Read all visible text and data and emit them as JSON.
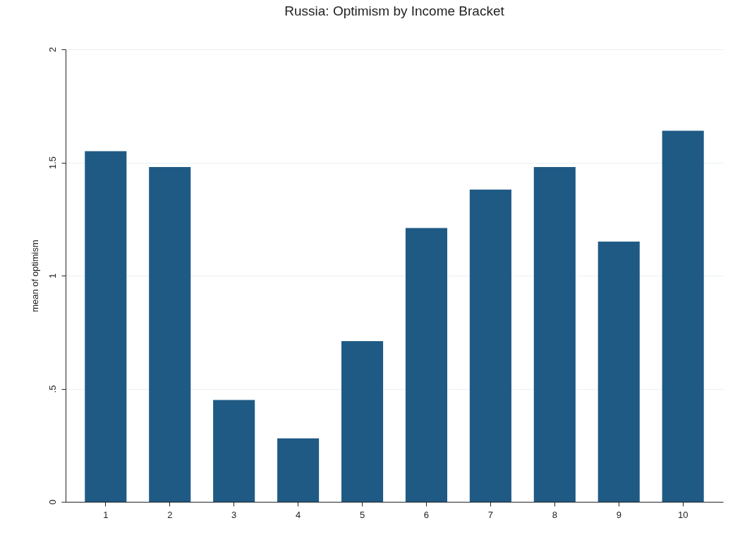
{
  "chart_data": {
    "type": "bar",
    "title": "Russia: Optimism by Income Bracket",
    "ylabel": "mean of optimism",
    "categories": [
      "1",
      "2",
      "3",
      "4",
      "5",
      "6",
      "7",
      "8",
      "9",
      "10"
    ],
    "values": [
      1.55,
      1.48,
      0.45,
      0.28,
      0.71,
      1.21,
      1.38,
      1.48,
      1.15,
      1.64
    ],
    "color": "#1f5a85",
    "ylim": [
      0,
      2
    ],
    "yticks": [
      0,
      {
        "value": 0.5,
        "label": ".5"
      },
      1,
      1.5,
      2
    ],
    "grid": "y"
  }
}
